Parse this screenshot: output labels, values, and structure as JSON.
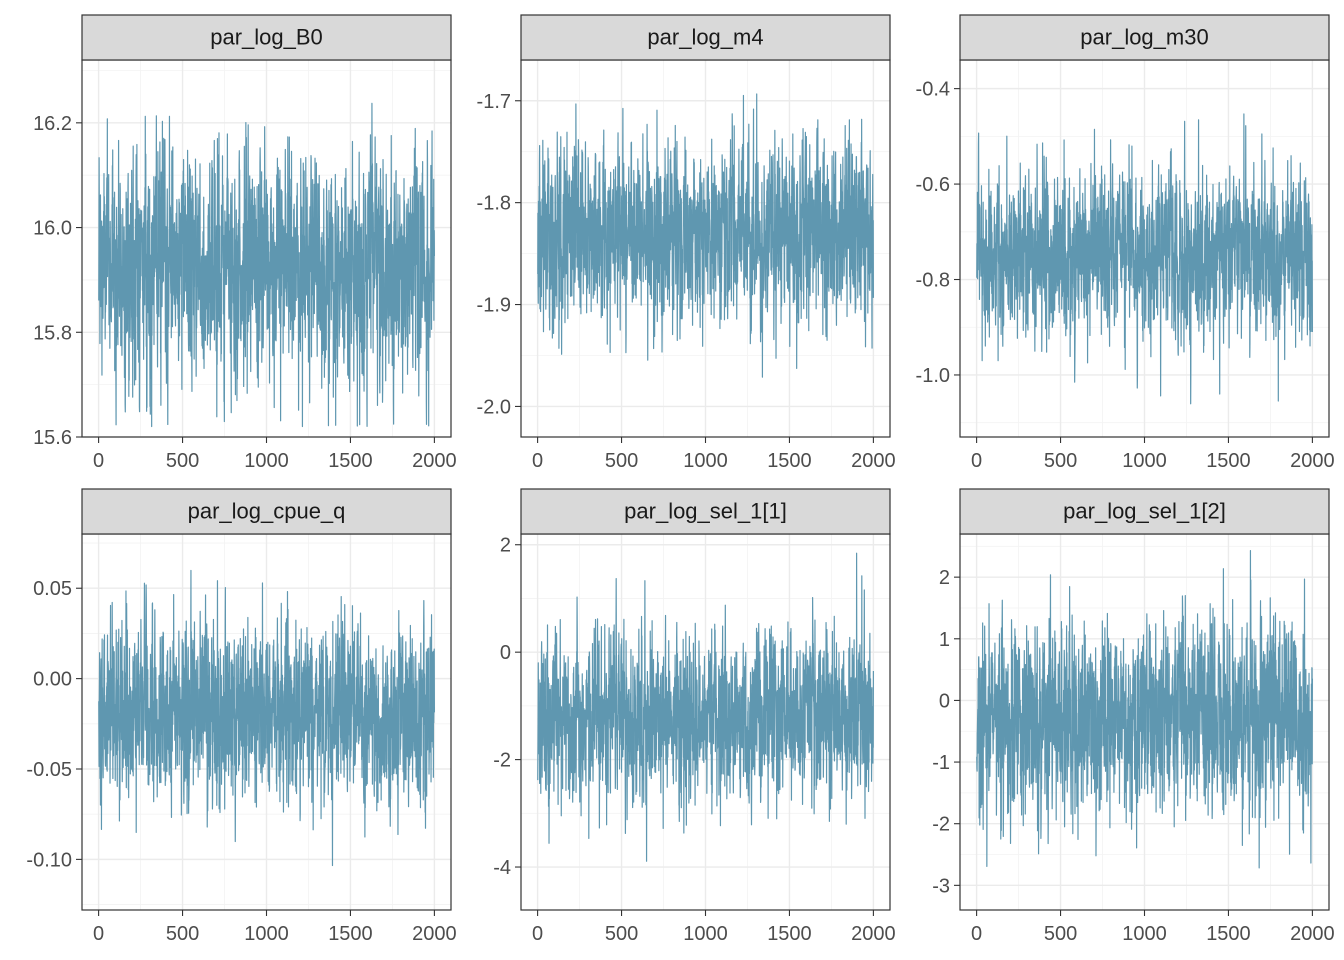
{
  "chart_data": {
    "type": "line",
    "layout": "facet-grid 2x3",
    "series_color": "#5f97b0",
    "panels": [
      {
        "name": "par_log_B0",
        "title": "par_log_B0",
        "xlim": [
          0,
          2000
        ],
        "ylim": [
          15.6,
          16.32
        ],
        "x_ticks": [
          0,
          500,
          1000,
          1500,
          2000
        ],
        "y_ticks": [
          15.6,
          15.8,
          16.0,
          16.2
        ],
        "y_tick_labels": [
          "15.6",
          "15.8",
          "16.0",
          "16.2"
        ],
        "trace": {
          "iterations": 2000,
          "center": 15.93,
          "spread": 0.105,
          "min": 15.62,
          "max": 16.3
        }
      },
      {
        "name": "par_log_m4",
        "title": "par_log_m4",
        "xlim": [
          0,
          2000
        ],
        "ylim": [
          -2.03,
          -1.66
        ],
        "x_ticks": [
          0,
          500,
          1000,
          1500,
          2000
        ],
        "y_ticks": [
          -2.0,
          -1.9,
          -1.8,
          -1.7
        ],
        "y_tick_labels": [
          "-2.0",
          "-1.9",
          "-1.8",
          "-1.7"
        ],
        "trace": {
          "iterations": 2000,
          "center": -1.83,
          "spread": 0.042,
          "min": -2.01,
          "max": -1.69
        }
      },
      {
        "name": "par_log_m30",
        "title": "par_log_m30",
        "xlim": [
          0,
          2000
        ],
        "ylim": [
          -1.13,
          -0.34
        ],
        "x_ticks": [
          0,
          500,
          1000,
          1500,
          2000
        ],
        "y_ticks": [
          -1.0,
          -0.8,
          -0.6,
          -0.4
        ],
        "y_tick_labels": [
          "-1.0",
          "-0.8",
          "-0.6",
          "-0.4"
        ],
        "trace": {
          "iterations": 2000,
          "center": -0.75,
          "spread": 0.085,
          "min": -1.1,
          "max": -0.37
        }
      },
      {
        "name": "par_log_cpue_q",
        "title": "par_log_cpue_q",
        "xlim": [
          0,
          2000
        ],
        "ylim": [
          -0.128,
          0.08
        ],
        "x_ticks": [
          0,
          500,
          1000,
          1500,
          2000
        ],
        "y_ticks": [
          -0.1,
          -0.05,
          0.0,
          0.05
        ],
        "y_tick_labels": [
          "-0.10",
          "-0.05",
          "0.00",
          "0.05"
        ],
        "trace": {
          "iterations": 2000,
          "center": -0.018,
          "spread": 0.024,
          "min": -0.12,
          "max": 0.07
        }
      },
      {
        "name": "par_log_sel_1[1]",
        "title": "par_log_sel_1[1]",
        "xlim": [
          0,
          2000
        ],
        "ylim": [
          -4.8,
          2.2
        ],
        "x_ticks": [
          0,
          500,
          1000,
          1500,
          2000
        ],
        "y_ticks": [
          -4,
          -2,
          0,
          2
        ],
        "y_tick_labels": [
          "-4",
          "-2",
          "0",
          "2"
        ],
        "trace": {
          "iterations": 2000,
          "center": -1.2,
          "spread": 0.75,
          "min": -4.45,
          "max": 1.85
        }
      },
      {
        "name": "par_log_sel_1[2]",
        "title": "par_log_sel_1[2]",
        "xlim": [
          0,
          2000
        ],
        "ylim": [
          -3.4,
          2.7
        ],
        "x_ticks": [
          0,
          500,
          1000,
          1500,
          2000
        ],
        "y_ticks": [
          -3,
          -2,
          -1,
          0,
          1,
          2
        ],
        "y_tick_labels": [
          "-3",
          "-2",
          "-1",
          "0",
          "1",
          "2"
        ],
        "trace": {
          "iterations": 2000,
          "center": -0.3,
          "spread": 0.75,
          "min": -3.15,
          "max": 2.45
        }
      }
    ]
  }
}
